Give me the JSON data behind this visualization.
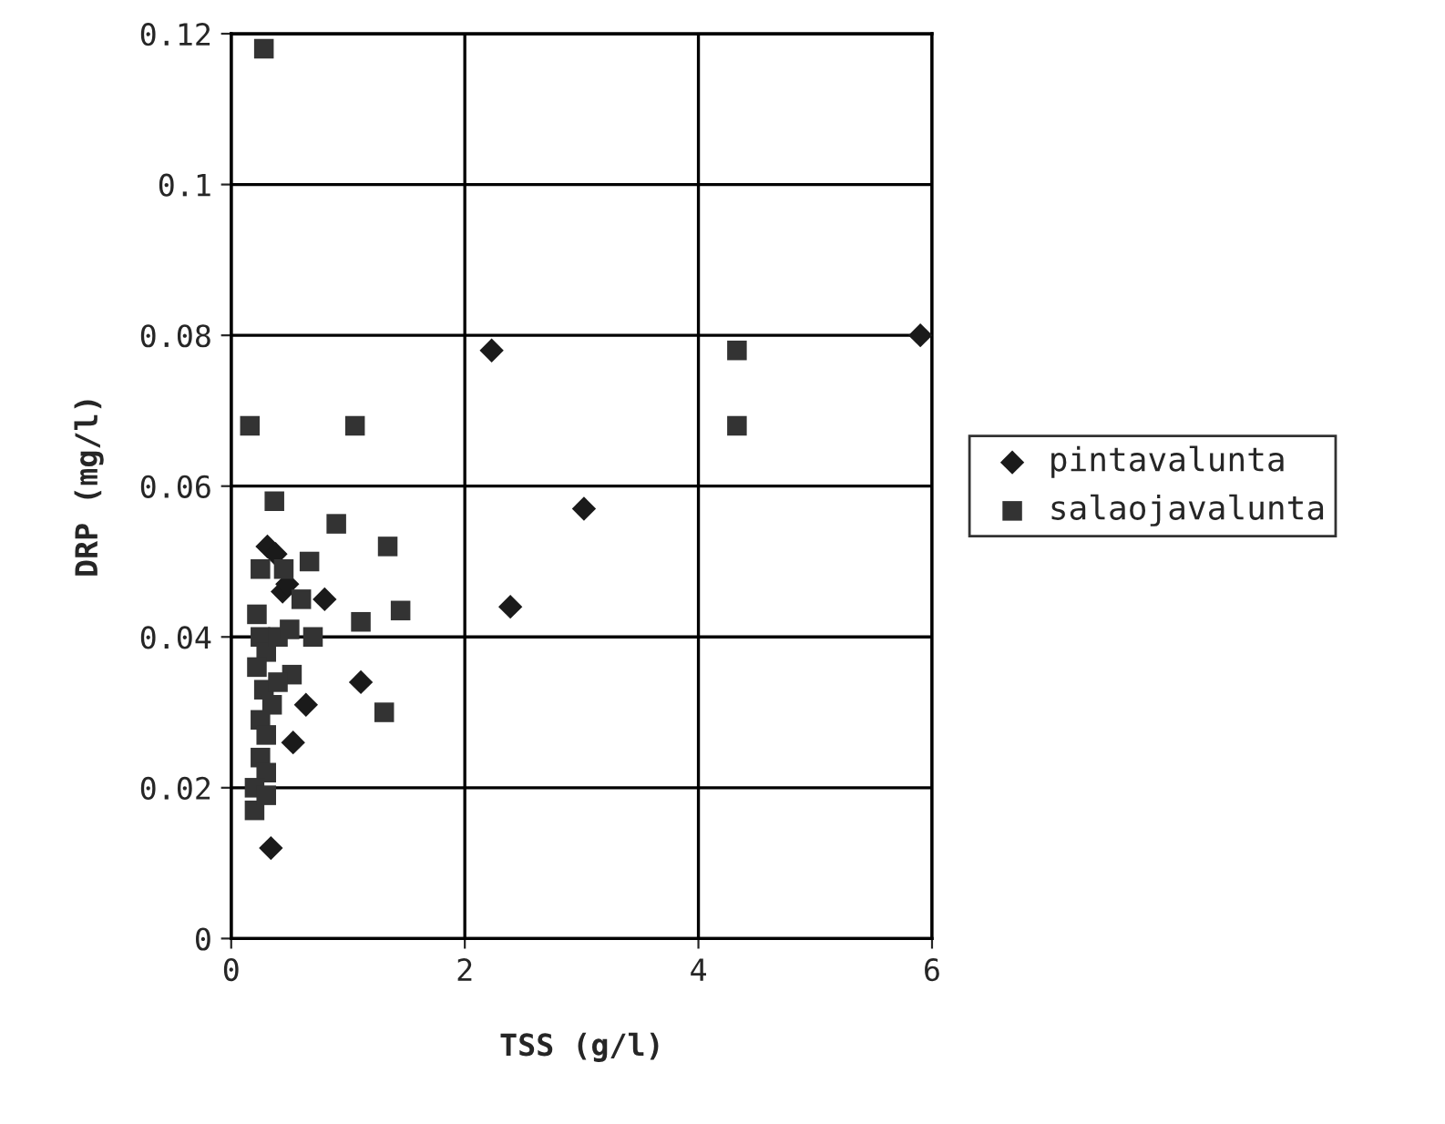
{
  "chart_data": {
    "type": "scatter",
    "xlabel": "TSS (g/l)",
    "ylabel": "DRP (mg/l)",
    "xlim": [
      0,
      6
    ],
    "ylim": [
      0,
      0.12
    ],
    "xticks": [
      0,
      2,
      4,
      6
    ],
    "yticks": [
      0,
      0.02,
      0.04,
      0.06,
      0.08,
      {
        "value": 0.1,
        "label": "0.1"
      },
      0.12
    ],
    "grid": true,
    "legend": "right",
    "series": [
      {
        "name": "pintavalunta",
        "color": "#1a1a1a",
        "marker": "diamond",
        "x": [
          2.23,
          5.9,
          3.02,
          2.39,
          1.11,
          0.64,
          0.53,
          0.34,
          0.8,
          0.31,
          0.44,
          0.38,
          0.48
        ],
        "values": [
          0.078,
          0.08,
          0.057,
          0.044,
          0.034,
          0.031,
          0.026,
          0.012,
          0.045,
          0.052,
          0.046,
          0.051,
          0.047
        ]
      },
      {
        "name": "salaojavalunta",
        "color": "#333333",
        "marker": "square",
        "x": [
          0.28,
          0.16,
          1.06,
          4.33,
          4.33,
          0.37,
          0.9,
          1.34,
          1.45,
          1.11,
          1.31,
          0.2,
          0.67,
          0.52,
          0.22,
          0.25,
          0.3,
          0.22,
          0.28,
          0.35,
          0.25,
          0.3,
          0.4,
          0.25,
          0.3,
          0.2,
          0.3,
          0.45,
          0.6,
          0.7,
          0.4,
          0.5,
          0.25
        ],
        "values": [
          0.118,
          0.068,
          0.068,
          0.078,
          0.068,
          0.058,
          0.055,
          0.052,
          0.0435,
          0.042,
          0.03,
          0.017,
          0.05,
          0.035,
          0.043,
          0.04,
          0.038,
          0.036,
          0.033,
          0.031,
          0.029,
          0.027,
          0.04,
          0.024,
          0.022,
          0.02,
          0.019,
          0.049,
          0.045,
          0.04,
          0.034,
          0.041,
          0.049
        ]
      }
    ]
  }
}
